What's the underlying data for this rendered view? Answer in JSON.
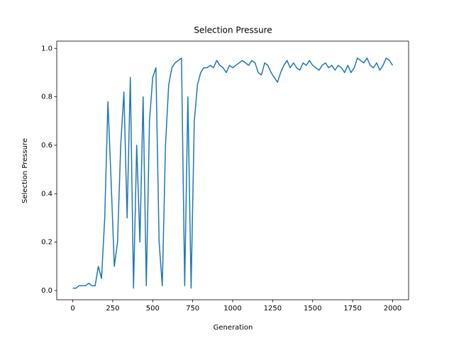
{
  "chart_data": {
    "type": "line",
    "title": "Selection Pressure",
    "x_label": "Generation",
    "y_label": "Selection Pressure",
    "x": [
      0,
      20,
      40,
      60,
      80,
      100,
      120,
      140,
      160,
      180,
      200,
      220,
      240,
      260,
      280,
      300,
      320,
      340,
      360,
      380,
      400,
      420,
      440,
      460,
      480,
      500,
      520,
      540,
      560,
      580,
      600,
      620,
      640,
      660,
      680,
      700,
      720,
      740,
      760,
      780,
      800,
      820,
      840,
      860,
      880,
      900,
      920,
      940,
      960,
      980,
      1000,
      1020,
      1040,
      1060,
      1080,
      1100,
      1120,
      1140,
      1160,
      1180,
      1200,
      1220,
      1240,
      1260,
      1280,
      1300,
      1320,
      1340,
      1360,
      1380,
      1400,
      1420,
      1440,
      1460,
      1480,
      1500,
      1520,
      1540,
      1560,
      1580,
      1600,
      1620,
      1640,
      1660,
      1680,
      1700,
      1720,
      1740,
      1760,
      1780,
      1800,
      1820,
      1840,
      1860,
      1880,
      1900,
      1920,
      1940,
      1960,
      1980,
      2000
    ],
    "series": [
      {
        "name": "Selection Pressure",
        "color": "#1f77b4",
        "values": [
          0.01,
          0.01,
          0.02,
          0.02,
          0.02,
          0.03,
          0.02,
          0.02,
          0.1,
          0.05,
          0.3,
          0.78,
          0.45,
          0.1,
          0.2,
          0.6,
          0.82,
          0.3,
          0.88,
          0.01,
          0.6,
          0.2,
          0.8,
          0.02,
          0.7,
          0.88,
          0.92,
          0.2,
          0.02,
          0.6,
          0.85,
          0.92,
          0.94,
          0.95,
          0.96,
          0.02,
          0.8,
          0.01,
          0.7,
          0.85,
          0.9,
          0.92,
          0.92,
          0.93,
          0.92,
          0.95,
          0.93,
          0.92,
          0.9,
          0.93,
          0.92,
          0.93,
          0.94,
          0.95,
          0.94,
          0.93,
          0.95,
          0.94,
          0.9,
          0.89,
          0.94,
          0.93,
          0.9,
          0.88,
          0.86,
          0.9,
          0.93,
          0.95,
          0.92,
          0.94,
          0.92,
          0.91,
          0.94,
          0.93,
          0.95,
          0.93,
          0.92,
          0.91,
          0.93,
          0.94,
          0.92,
          0.93,
          0.91,
          0.93,
          0.92,
          0.9,
          0.93,
          0.9,
          0.92,
          0.96,
          0.95,
          0.94,
          0.96,
          0.93,
          0.92,
          0.94,
          0.91,
          0.93,
          0.96,
          0.95,
          0.93
        ]
      }
    ],
    "xlim": [
      -100,
      2100
    ],
    "ylim": [
      -0.038,
      1.03
    ],
    "xticks": [
      0,
      250,
      500,
      750,
      1000,
      1250,
      1500,
      1750,
      2000
    ],
    "yticks": [
      {
        "value": 0,
        "label": "0.0"
      },
      0.2,
      0.4,
      0.6,
      0.8,
      {
        "value": 1,
        "label": "1.0"
      }
    ]
  }
}
